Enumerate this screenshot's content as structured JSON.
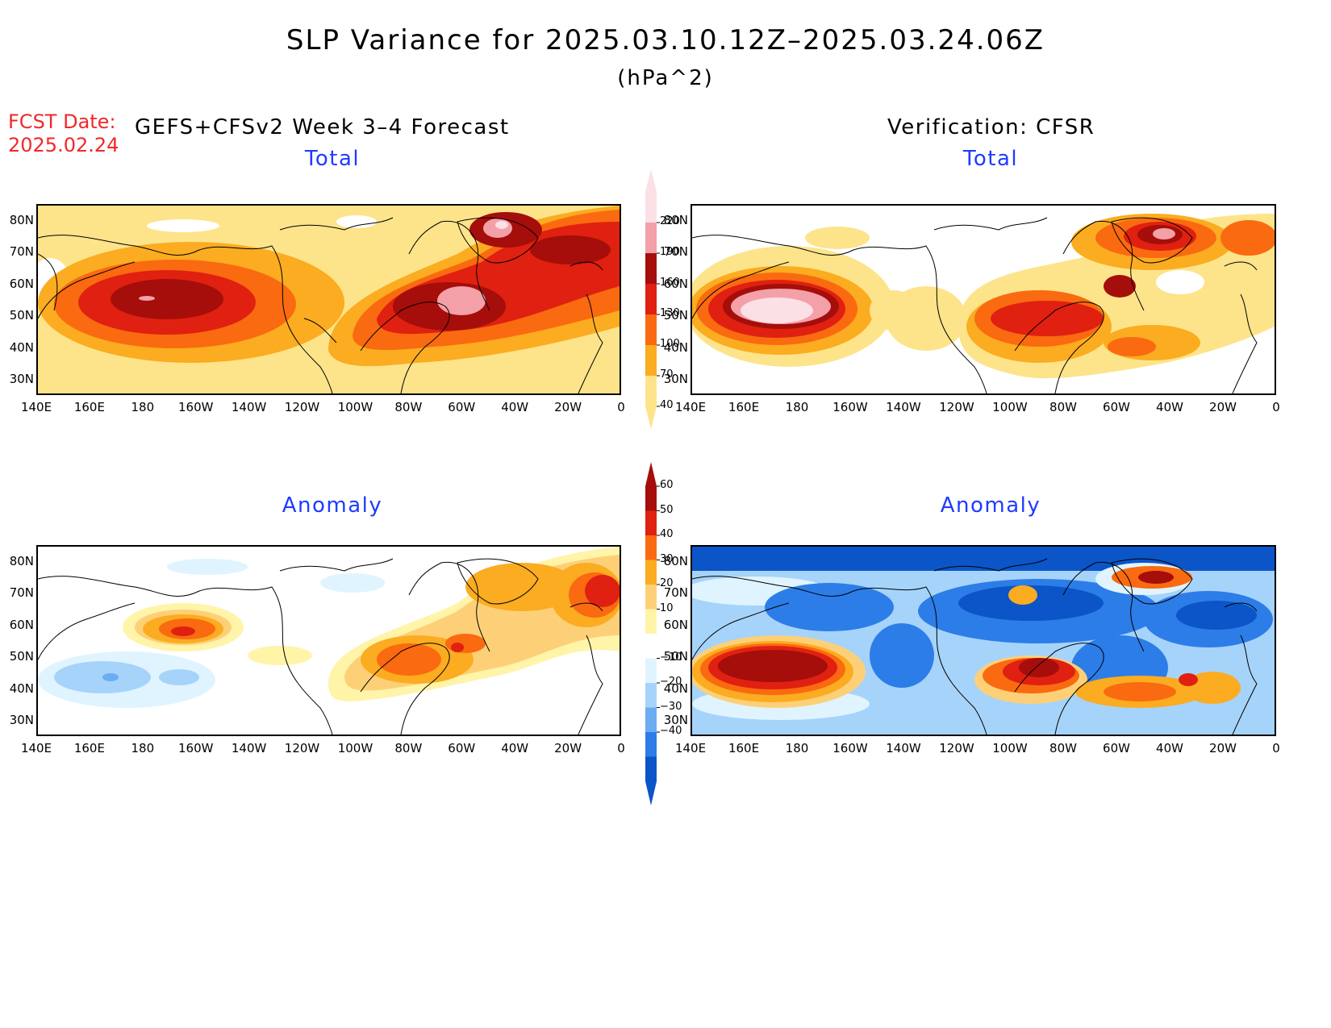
{
  "header": {
    "title": "SLP Variance for 2025.03.10.12Z–2025.03.24.06Z",
    "units": "(hPa^2)",
    "fcst_label": "FCST Date:",
    "fcst_date": "2025.02.24",
    "model_title": "GEFS+CFSv2 Week 3–4 Forecast",
    "verification_title": "Verification: CFSR"
  },
  "panels": {
    "forecast_total": {
      "title": "Total"
    },
    "forecast_anomaly": {
      "title": "Anomaly"
    },
    "verif_total": {
      "title": "Total"
    },
    "verif_anomaly": {
      "title": "Anomaly"
    }
  },
  "axes": {
    "lat_ticks": [
      "80N",
      "70N",
      "60N",
      "50N",
      "40N",
      "30N"
    ],
    "lon_ticks": [
      "140E",
      "160E",
      "180",
      "160W",
      "140W",
      "120W",
      "100W",
      "80W",
      "60W",
      "40W",
      "20W",
      "0"
    ]
  },
  "colorbars": {
    "total": {
      "levels": [
        "40",
        "70",
        "100",
        "130",
        "160",
        "190",
        "220"
      ],
      "colors": [
        "#fde48a",
        "#fbac20",
        "#fa6a10",
        "#e02010",
        "#a50e0a",
        "#f3a0a8",
        "#fbe0e6"
      ]
    },
    "anomaly": {
      "levels": [
        "60",
        "50",
        "40",
        "30",
        "20",
        "10",
        "−10",
        "−20",
        "−30",
        "−40"
      ],
      "colors": [
        "#a50e0a",
        "#e02010",
        "#fa6a10",
        "#fbac20",
        "#fdd078",
        "#fff4a8",
        "#ffffff",
        "#dff4ff",
        "#a6d3fa",
        "#6aadf2",
        "#2c7de8",
        "#0b55c8"
      ]
    }
  },
  "field_colors": {
    "t1": "#fde48a",
    "t2": "#fbac20",
    "t3": "#fa6a10",
    "t4": "#e02010",
    "t5": "#a50e0a",
    "t6": "#f3a0a8",
    "t7": "#fbe0e6",
    "p1": "#fff4a8",
    "p2": "#fdd078",
    "p3": "#fbac20",
    "p4": "#fa6a10",
    "p5": "#e02010",
    "p6": "#a50e0a",
    "n1": "#dff4ff",
    "n2": "#a6d3fa",
    "n3": "#6aadf2",
    "n4": "#2c7de8",
    "n5": "#0b55c8"
  }
}
